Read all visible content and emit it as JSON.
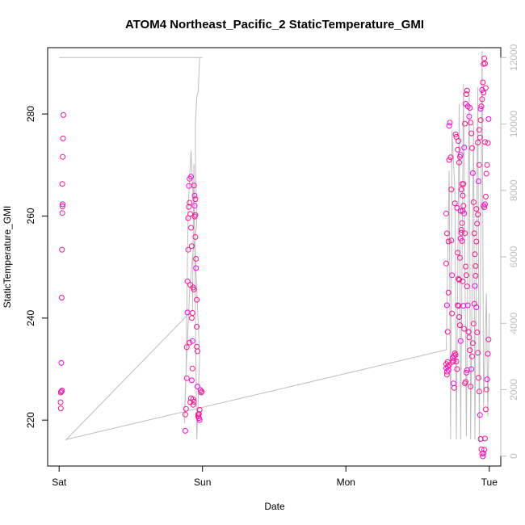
{
  "chart_data": {
    "type": "scatter",
    "title": "ATOM4 Northeast_Pacific_2 StaticTemperature_GMI",
    "xlabel": "Date",
    "ylabel": "StaticTemperature_GMI",
    "x_ticks": [
      {
        "label": "Sat",
        "day": 0
      },
      {
        "label": "Sun",
        "day": 1
      },
      {
        "label": "Mon",
        "day": 2
      },
      {
        "label": "Tue",
        "day": 3
      }
    ],
    "xlim_days": [
      -0.08,
      3.08
    ],
    "ylim": [
      211,
      293
    ],
    "y_ticks": [
      220,
      240,
      260,
      280
    ],
    "y2lim": [
      -300,
      12300
    ],
    "y2_ticks": [
      0,
      2000,
      4000,
      6000,
      8000,
      10000,
      12000
    ],
    "grid": false,
    "colors": {
      "points": "#ff1493",
      "points_alt": "#ff00ff",
      "line": "#bebebe",
      "axis": "#000000"
    },
    "series": [
      {
        "kind": "scatter",
        "axis": "left",
        "points": [
          [
            0.015,
            225.6
          ],
          [
            0.012,
            225.4
          ],
          [
            0.02,
            225.8
          ],
          [
            0.01,
            223.5
          ],
          [
            0.012,
            222.3
          ],
          [
            0.015,
            231.2
          ],
          [
            0.018,
            244.0
          ],
          [
            0.02,
            253.4
          ],
          [
            0.022,
            260.6
          ],
          [
            0.023,
            261.9
          ],
          [
            0.024,
            262.3
          ],
          [
            0.022,
            266.3
          ],
          [
            0.025,
            271.6
          ],
          [
            0.027,
            275.2
          ],
          [
            0.03,
            279.8
          ],
          [
            0.88,
            217.9
          ],
          [
            0.88,
            221.1
          ],
          [
            0.885,
            222.2
          ],
          [
            0.89,
            228.2
          ],
          [
            0.89,
            234.3
          ],
          [
            0.895,
            241.1
          ],
          [
            0.895,
            247.2
          ],
          [
            0.9,
            253.4
          ],
          [
            0.9,
            259.6
          ],
          [
            0.905,
            261.8
          ],
          [
            0.905,
            265.9
          ],
          [
            0.91,
            267.3
          ],
          [
            0.91,
            262.6
          ],
          [
            0.915,
            260.4
          ],
          [
            0.915,
            246.5
          ],
          [
            0.92,
            267.7
          ],
          [
            0.92,
            257.7
          ],
          [
            0.925,
            254.1
          ],
          [
            0.925,
            240.0
          ],
          [
            0.93,
            230.1
          ],
          [
            0.93,
            235.5
          ],
          [
            0.935,
            224.1
          ],
          [
            0.935,
            223.0
          ],
          [
            0.94,
            223.6
          ],
          [
            0.94,
            266.0
          ],
          [
            0.945,
            262.0
          ],
          [
            0.945,
            259.9
          ],
          [
            0.95,
            260.2
          ],
          [
            0.95,
            255.9
          ],
          [
            0.955,
            251.6
          ],
          [
            0.955,
            249.8
          ],
          [
            0.96,
            243.6
          ],
          [
            0.96,
            234.4
          ],
          [
            0.96,
            238.3
          ],
          [
            0.965,
            233.5
          ],
          [
            0.965,
            226.6
          ],
          [
            0.97,
            220.7
          ],
          [
            0.97,
            221.1
          ],
          [
            0.975,
            220.4
          ],
          [
            0.975,
            221.2
          ],
          [
            0.98,
            220.0
          ],
          [
            0.98,
            222.0
          ],
          [
            0.985,
            225.9
          ],
          [
            0.99,
            225.4
          ],
          [
            0.995,
            225.6
          ],
          [
            0.945,
            264.0
          ],
          [
            0.95,
            263.3
          ],
          [
            0.94,
            245.6
          ],
          [
            0.935,
            246.0
          ],
          [
            0.93,
            241.0
          ],
          [
            0.925,
            227.8
          ],
          [
            0.92,
            224.3
          ],
          [
            0.915,
            223.5
          ],
          [
            0.91,
            235.2
          ],
          [
            2.7,
            231.0
          ],
          [
            2.7,
            230.2
          ],
          [
            2.705,
            229.5
          ],
          [
            2.705,
            228.9
          ],
          [
            2.71,
            230.5
          ],
          [
            2.71,
            231.4
          ],
          [
            2.715,
            229.8
          ],
          [
            2.72,
            230.8
          ],
          [
            2.7,
            250.7
          ],
          [
            2.7,
            260.5
          ],
          [
            2.705,
            256.6
          ],
          [
            2.705,
            242.5
          ],
          [
            2.71,
            237.3
          ],
          [
            2.715,
            245.0
          ],
          [
            2.715,
            255.0
          ],
          [
            2.72,
            271.0
          ],
          [
            2.72,
            277.7
          ],
          [
            2.725,
            278.3
          ],
          [
            2.73,
            271.5
          ],
          [
            2.735,
            265.2
          ],
          [
            2.735,
            255.2
          ],
          [
            2.74,
            248.4
          ],
          [
            2.74,
            240.9
          ],
          [
            2.745,
            232.2
          ],
          [
            2.745,
            231.4
          ],
          [
            2.75,
            231.7
          ],
          [
            2.755,
            232.6
          ],
          [
            2.76,
            233.1
          ],
          [
            2.765,
            232.8
          ],
          [
            2.77,
            231.5
          ],
          [
            2.775,
            230.0
          ],
          [
            2.75,
            227.2
          ],
          [
            2.755,
            226.3
          ],
          [
            2.76,
            262.5
          ],
          [
            2.765,
            276.0
          ],
          [
            2.77,
            275.5
          ],
          [
            2.775,
            261.6
          ],
          [
            2.78,
            252.8
          ],
          [
            2.785,
            247.7
          ],
          [
            2.79,
            240.2
          ],
          [
            2.795,
            238.6
          ],
          [
            2.8,
            235.5
          ],
          [
            2.78,
            242.5
          ],
          [
            2.785,
            242.4
          ],
          [
            2.79,
            247.5
          ],
          [
            2.795,
            251.8
          ],
          [
            2.8,
            255.6
          ],
          [
            2.805,
            257.3
          ],
          [
            2.81,
            258.6
          ],
          [
            2.815,
            261.0
          ],
          [
            2.82,
            266.3
          ],
          [
            2.825,
            273.4
          ],
          [
            2.83,
            278.1
          ],
          [
            2.835,
            282.0
          ],
          [
            2.84,
            283.9
          ],
          [
            2.845,
            284.6
          ],
          [
            2.85,
            281.5
          ],
          [
            2.8,
            261.0
          ],
          [
            2.805,
            256.7
          ],
          [
            2.81,
            255.1
          ],
          [
            2.815,
            247.2
          ],
          [
            2.82,
            242.4
          ],
          [
            2.825,
            237.9
          ],
          [
            2.83,
            227.2
          ],
          [
            2.835,
            227.5
          ],
          [
            2.84,
            229.3
          ],
          [
            2.845,
            229.8
          ],
          [
            2.78,
            273.0
          ],
          [
            2.785,
            274.7
          ],
          [
            2.79,
            270.5
          ],
          [
            2.795,
            271.6
          ],
          [
            2.8,
            272.0
          ],
          [
            2.805,
            265.2
          ],
          [
            2.81,
            266.3
          ],
          [
            2.815,
            264.0
          ],
          [
            2.82,
            262.0
          ],
          [
            2.825,
            260.5
          ],
          [
            2.83,
            256.6
          ],
          [
            2.835,
            250.1
          ],
          [
            2.84,
            248.4
          ],
          [
            2.845,
            246.2
          ],
          [
            2.85,
            242.5
          ],
          [
            2.855,
            237.3
          ],
          [
            2.86,
            236.2
          ],
          [
            2.865,
            233.7
          ],
          [
            2.87,
            226.6
          ],
          [
            2.875,
            230.0
          ],
          [
            2.88,
            232.5
          ],
          [
            2.885,
            235.1
          ],
          [
            2.89,
            238.9
          ],
          [
            2.895,
            242.8
          ],
          [
            2.9,
            246.3
          ],
          [
            2.905,
            250.2
          ],
          [
            2.91,
            255.0
          ],
          [
            2.915,
            258.5
          ],
          [
            2.92,
            260.3
          ],
          [
            2.925,
            266.8
          ],
          [
            2.93,
            270.0
          ],
          [
            2.935,
            275.4
          ],
          [
            2.94,
            278.8
          ],
          [
            2.945,
            281.5
          ],
          [
            2.95,
            284.7
          ],
          [
            2.955,
            286.2
          ],
          [
            2.96,
            289.8
          ],
          [
            2.965,
            290.9
          ],
          [
            2.97,
            289.9
          ],
          [
            2.86,
            279.5
          ],
          [
            2.865,
            281.2
          ],
          [
            2.87,
            278.3
          ],
          [
            2.875,
            276.2
          ],
          [
            2.88,
            273.3
          ],
          [
            2.885,
            268.4
          ],
          [
            2.89,
            262.7
          ],
          [
            2.895,
            256.6
          ],
          [
            2.9,
            252.5
          ],
          [
            2.905,
            248.3
          ],
          [
            2.91,
            242.1
          ],
          [
            2.915,
            237.2
          ],
          [
            2.92,
            233.2
          ],
          [
            2.925,
            228.3
          ],
          [
            2.93,
            225.6
          ],
          [
            2.935,
            221.0
          ],
          [
            2.94,
            216.3
          ],
          [
            2.945,
            214.3
          ],
          [
            2.95,
            213.4
          ],
          [
            2.955,
            212.9
          ],
          [
            2.96,
            213.5
          ],
          [
            2.965,
            214.2
          ],
          [
            2.97,
            216.4
          ],
          [
            2.975,
            222.1
          ],
          [
            2.98,
            226.0
          ],
          [
            2.985,
            228.0
          ],
          [
            2.99,
            233.0
          ],
          [
            2.995,
            235.8
          ],
          [
            2.96,
            262.0
          ],
          [
            2.965,
            261.7
          ],
          [
            2.97,
            262.3
          ],
          [
            2.975,
            263.8
          ],
          [
            2.98,
            268.3
          ],
          [
            2.985,
            270.0
          ],
          [
            2.99,
            274.3
          ],
          [
            2.995,
            279.0
          ],
          [
            2.97,
            274.5
          ],
          [
            2.975,
            285.1
          ],
          [
            2.96,
            284.2
          ],
          [
            2.95,
            282.9
          ],
          [
            2.94,
            281.0
          ],
          [
            2.93,
            276.9
          ],
          [
            2.92,
            274.4
          ],
          [
            2.91,
            261.4
          ]
        ]
      },
      {
        "kind": "line",
        "axis": "right",
        "points": [
          [
            0.0,
            12000
          ],
          [
            1.0,
            12000
          ],
          [
            0.98,
            12000
          ],
          [
            0.97,
            11000
          ],
          [
            0.96,
            10800
          ],
          [
            0.95,
            10000
          ],
          [
            0.95,
            9000
          ],
          [
            0.955,
            8000
          ],
          [
            0.96,
            7000
          ],
          [
            0.93,
            6000
          ],
          [
            0.91,
            5000
          ],
          [
            0.9,
            4000
          ],
          [
            0.89,
            3000
          ],
          [
            0.88,
            2000
          ],
          [
            0.875,
            1000
          ],
          [
            0.885,
            2500
          ],
          [
            0.9,
            7500
          ],
          [
            0.92,
            9200
          ],
          [
            0.94,
            7300
          ],
          [
            0.96,
            5000
          ],
          [
            0.98,
            3000
          ],
          [
            0.96,
            500
          ],
          [
            0.94,
            8800
          ],
          [
            0.93,
            4400
          ],
          [
            0.05,
            500
          ],
          [
            2.7,
            3200
          ],
          [
            2.72,
            8600
          ],
          [
            2.73,
            500
          ],
          [
            2.74,
            9800
          ],
          [
            2.76,
            8000
          ],
          [
            2.77,
            500
          ],
          [
            2.79,
            10600
          ],
          [
            2.8,
            500
          ],
          [
            2.82,
            11200
          ],
          [
            2.84,
            600
          ],
          [
            2.86,
            10900
          ],
          [
            2.87,
            500
          ],
          [
            2.89,
            10000
          ],
          [
            2.9,
            500
          ],
          [
            2.92,
            11100
          ],
          [
            2.93,
            400
          ],
          [
            2.95,
            12200
          ],
          [
            2.96,
            1500
          ],
          [
            2.98,
            4900
          ],
          [
            2.99,
            1200
          ],
          [
            3.0,
            4300
          ]
        ]
      }
    ]
  }
}
